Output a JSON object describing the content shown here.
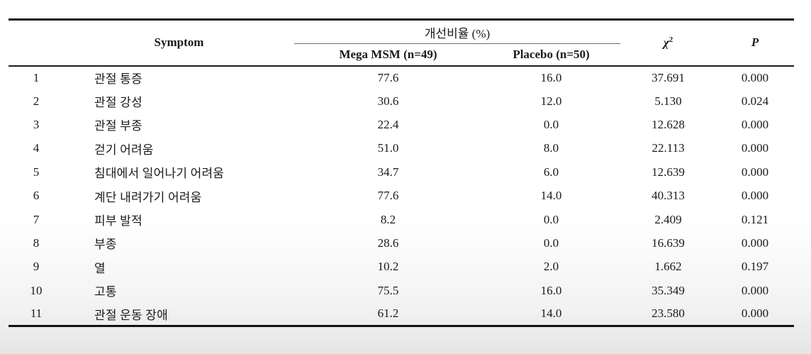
{
  "table": {
    "headers": {
      "symptom": "Symptom",
      "improvement_group": "개선비율 (%)",
      "mega_msm": "Mega MSM (n=49)",
      "placebo": "Placebo (n=50)",
      "chi_base": "χ",
      "chi_sup": "2",
      "p": "P"
    },
    "rows": [
      {
        "no": "1",
        "symptom": "관절 통증",
        "mega_msm": "77.6",
        "placebo": "16.0",
        "chi": "37.691",
        "p": "0.000"
      },
      {
        "no": "2",
        "symptom": "관절 강성",
        "mega_msm": "30.6",
        "placebo": "12.0",
        "chi": "5.130",
        "p": "0.024"
      },
      {
        "no": "3",
        "symptom": "관절 부종",
        "mega_msm": "22.4",
        "placebo": "0.0",
        "chi": "12.628",
        "p": "0.000"
      },
      {
        "no": "4",
        "symptom": "걷기 어려움",
        "mega_msm": "51.0",
        "placebo": "8.0",
        "chi": "22.113",
        "p": "0.000"
      },
      {
        "no": "5",
        "symptom": "침대에서 일어나기 어려움",
        "mega_msm": "34.7",
        "placebo": "6.0",
        "chi": "12.639",
        "p": "0.000"
      },
      {
        "no": "6",
        "symptom": "계단 내려가기 어려움",
        "mega_msm": "77.6",
        "placebo": "14.0",
        "chi": "40.313",
        "p": "0.000"
      },
      {
        "no": "7",
        "symptom": "피부 발적",
        "mega_msm": "8.2",
        "placebo": "0.0",
        "chi": "2.409",
        "p": "0.121"
      },
      {
        "no": "8",
        "symptom": "부종",
        "mega_msm": "28.6",
        "placebo": "0.0",
        "chi": "16.639",
        "p": "0.000"
      },
      {
        "no": "9",
        "symptom": "열",
        "mega_msm": "10.2",
        "placebo": "2.0",
        "chi": "1.662",
        "p": "0.197"
      },
      {
        "no": "10",
        "symptom": "고통",
        "mega_msm": "75.5",
        "placebo": "16.0",
        "chi": "35.349",
        "p": "0.000"
      },
      {
        "no": "11",
        "symptom": "관절 운동 장애",
        "mega_msm": "61.2",
        "placebo": "14.0",
        "chi": "23.580",
        "p": "0.000"
      }
    ]
  },
  "chart_data": {
    "type": "table",
    "title": "개선비율 (%)",
    "columns": [
      "Symptom",
      "Mega MSM (n=49)",
      "Placebo (n=50)",
      "χ²",
      "P"
    ],
    "rows": [
      [
        "관절 통증",
        77.6,
        16.0,
        37.691,
        0.0
      ],
      [
        "관절 강성",
        30.6,
        12.0,
        5.13,
        0.024
      ],
      [
        "관절 부종",
        22.4,
        0.0,
        12.628,
        0.0
      ],
      [
        "걷기 어려움",
        51.0,
        8.0,
        22.113,
        0.0
      ],
      [
        "침대에서 일어나기 어려움",
        34.7,
        6.0,
        12.639,
        0.0
      ],
      [
        "계단 내려가기 어려움",
        77.6,
        14.0,
        40.313,
        0.0
      ],
      [
        "피부 발적",
        8.2,
        0.0,
        2.409,
        0.121
      ],
      [
        "부종",
        28.6,
        0.0,
        16.639,
        0.0
      ],
      [
        "열",
        10.2,
        2.0,
        1.662,
        0.197
      ],
      [
        "고통",
        75.5,
        16.0,
        35.349,
        0.0
      ],
      [
        "관절 운동 장애",
        61.2,
        14.0,
        23.58,
        0.0
      ]
    ]
  },
  "colors": {
    "text": "#1a1a1a",
    "rule_heavy": "#121212",
    "rule_light": "#6f6f6f",
    "page_bottom": "#e5e5e5"
  }
}
